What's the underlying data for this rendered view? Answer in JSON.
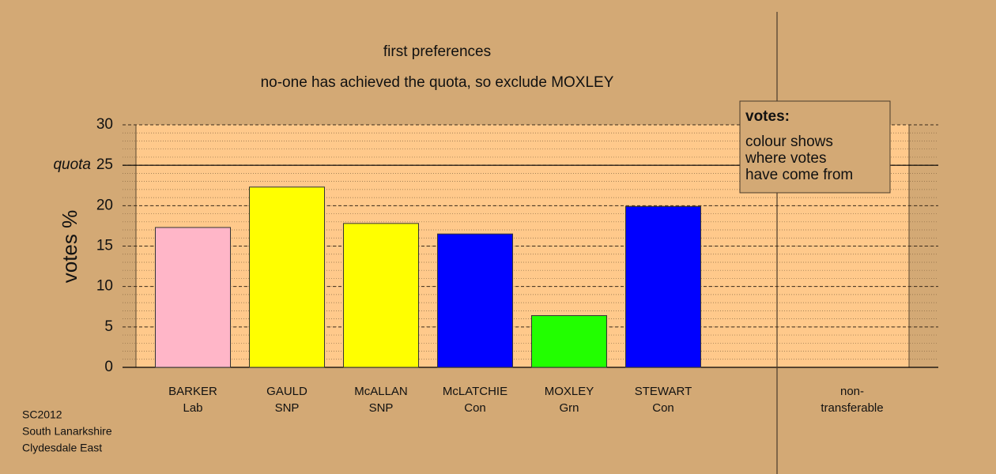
{
  "chart_data": {
    "type": "bar",
    "title": "first preferences",
    "subtitle": "no-one has achieved the quota, so exclude MOXLEY",
    "y_label": "votes %",
    "categories": [
      [
        "BARKER",
        "Lab"
      ],
      [
        "GAULD",
        "SNP"
      ],
      [
        "McALLAN",
        "SNP"
      ],
      [
        "McLATCHIE",
        "Con"
      ],
      [
        "MOXLEY",
        "Grn"
      ],
      [
        "STEWART",
        "Con"
      ],
      [
        "non-",
        "transferable"
      ]
    ],
    "values": [
      17.3,
      22.3,
      17.8,
      16.5,
      6.4,
      19.9,
      null
    ],
    "colors": [
      "#ffb6c8",
      "#ffff00",
      "#ffff00",
      "#0000ff",
      "#22ff00",
      "#0000ff",
      null
    ],
    "ylim": [
      0,
      30
    ],
    "yticks": [
      0,
      5,
      10,
      15,
      20,
      25,
      30
    ],
    "minor_grid_step": 1,
    "quota": {
      "label": "quota",
      "value": 25
    },
    "legend": {
      "title": "votes:",
      "lines": [
        "colour shows",
        "where votes",
        "have come from"
      ]
    },
    "footer": [
      "SC2012",
      "South Lanarkshire",
      "Clydesdale East"
    ]
  }
}
